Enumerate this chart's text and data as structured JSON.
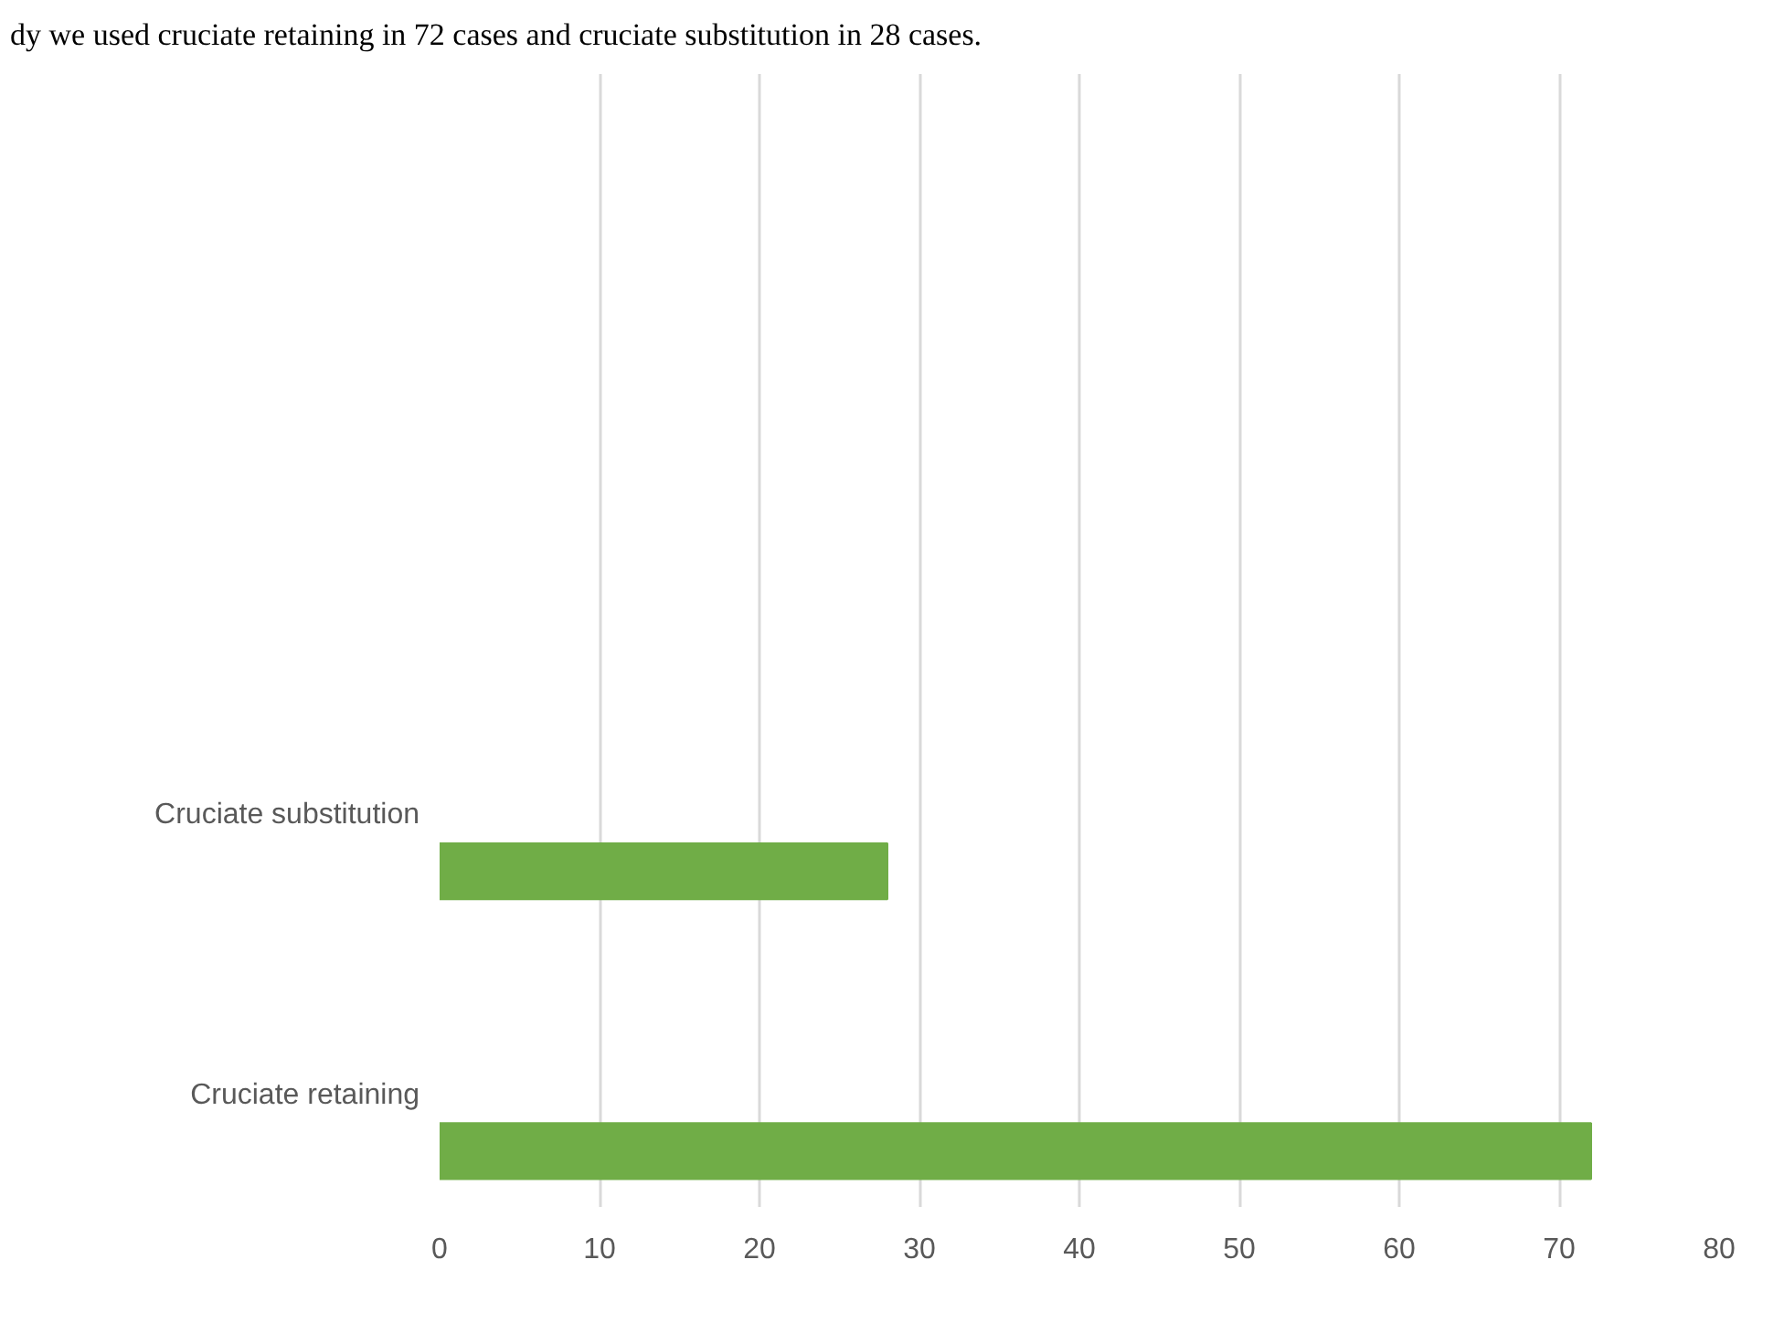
{
  "chart_data": {
    "type": "bar",
    "orientation": "horizontal",
    "categories": [
      "Cruciate substitution",
      "Cruciate retaining"
    ],
    "values": [
      28,
      72
    ],
    "color": "#70ad47",
    "xlim": [
      0,
      80
    ],
    "xticks": [
      0,
      10,
      20,
      30,
      40,
      50,
      60,
      70,
      80
    ],
    "grid": "x",
    "annotations": [
      "dy we used cruciate retaining in 72 cases and cruciate substitution in 28 cases."
    ]
  }
}
